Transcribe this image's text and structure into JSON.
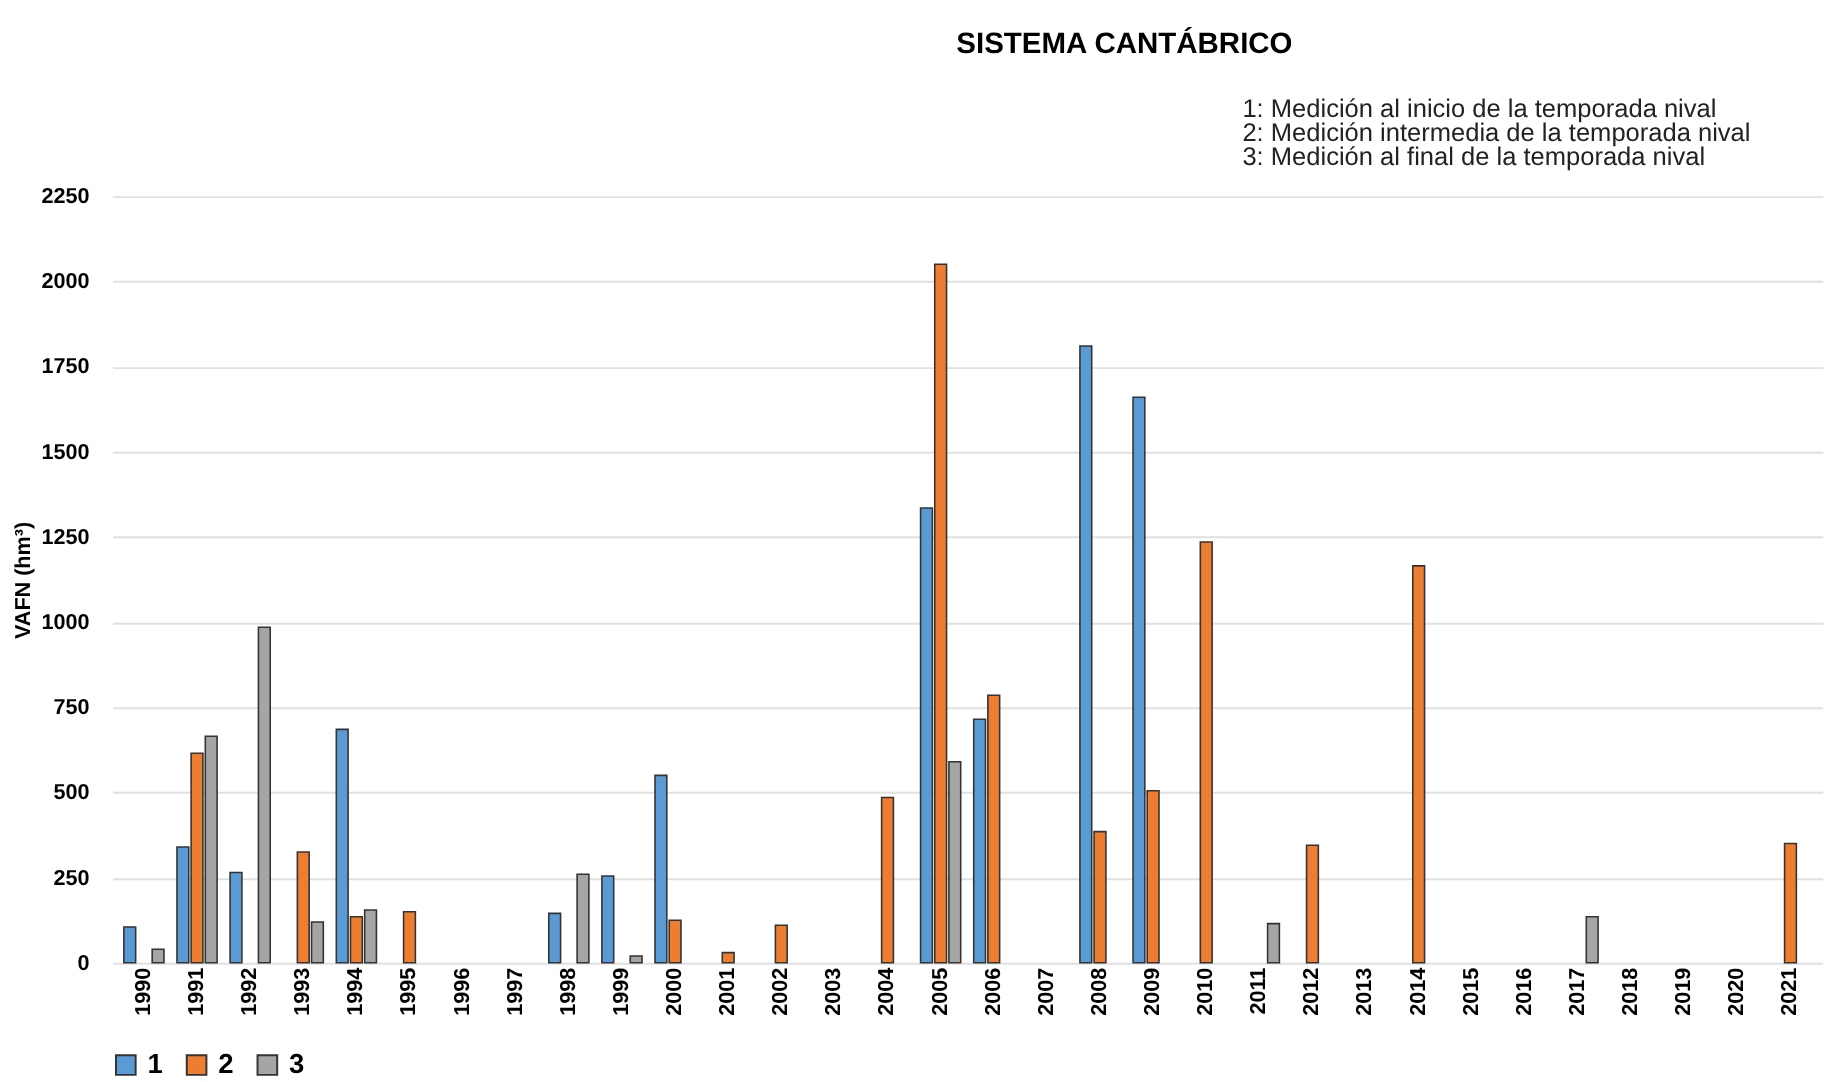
{
  "chart_data": {
    "type": "bar",
    "title": "SISTEMA CANTÁBRICO",
    "ylabel": "VAFN (hm³)",
    "categories": [
      "1990",
      "1991",
      "1992",
      "1993",
      "1994",
      "1995",
      "1996",
      "1997",
      "1998",
      "1999",
      "2000",
      "2001",
      "2002",
      "2003",
      "2004",
      "2005",
      "2006",
      "2007",
      "2008",
      "2009",
      "2010",
      "2011",
      "2012",
      "2013",
      "2014",
      "2015",
      "2016",
      "2017",
      "2018",
      "2019",
      "2020",
      "2021"
    ],
    "series": [
      {
        "name": "1",
        "color": "#5b9bd5",
        "values": [
          105,
          340,
          265,
          null,
          685,
          null,
          null,
          null,
          145,
          255,
          550,
          null,
          null,
          null,
          null,
          1335,
          715,
          null,
          1810,
          1660,
          null,
          null,
          null,
          null,
          null,
          null,
          null,
          null,
          null,
          null,
          null,
          null
        ]
      },
      {
        "name": "2",
        "color": "#ed7d31",
        "values": [
          null,
          615,
          null,
          325,
          135,
          150,
          null,
          null,
          null,
          null,
          125,
          30,
          110,
          null,
          485,
          2050,
          785,
          null,
          385,
          505,
          1235,
          null,
          345,
          null,
          1165,
          null,
          null,
          null,
          null,
          null,
          null,
          350
        ]
      },
      {
        "name": "3",
        "color": "#a5a5a5",
        "values": [
          40,
          665,
          985,
          120,
          155,
          null,
          null,
          null,
          260,
          20,
          null,
          null,
          null,
          null,
          null,
          590,
          null,
          null,
          null,
          null,
          null,
          115,
          null,
          null,
          null,
          null,
          null,
          135,
          null,
          null,
          null,
          null
        ]
      }
    ],
    "ylim": [
      0,
      2250
    ],
    "yticks": [
      0,
      250,
      500,
      750,
      1000,
      1250,
      1500,
      1750,
      2000,
      2250
    ],
    "grid": "y",
    "legend": "bottom",
    "annotations": [
      "1: Medición al inicio de la temporada nival",
      "2: Medición intermedia de la temporada nival",
      "3: Medición al final de la temporada nival"
    ]
  }
}
